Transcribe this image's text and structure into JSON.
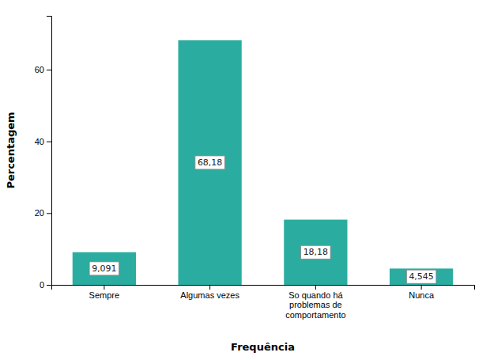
{
  "chart_data": {
    "type": "bar",
    "categories": [
      "Sempre",
      "Algumas vezes",
      "So quando há\nproblemas de\ncomportamento",
      "Nunca"
    ],
    "values": [
      9.091,
      68.18,
      18.18,
      4.545
    ],
    "value_labels": [
      "9,091",
      "68,18",
      "18,18",
      "4,545"
    ],
    "data_labels": true,
    "color": "#2aada0",
    "xlabel": "Frequência",
    "ylabel": "Percentagem",
    "ylim": [
      0,
      75
    ],
    "yticks": [
      0,
      20,
      40,
      60
    ],
    "grid": false
  }
}
